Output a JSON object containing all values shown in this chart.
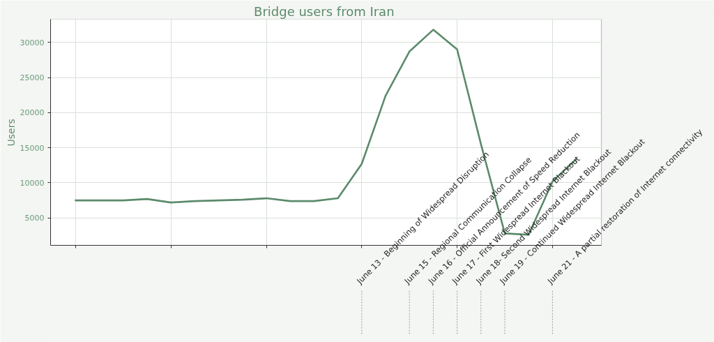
{
  "chart_data": {
    "type": "line",
    "title": "Bridge users from Iran",
    "ylabel": "Users",
    "categories": [
      null,
      null,
      null,
      null,
      null,
      null,
      null,
      null,
      null,
      null,
      null,
      null,
      null,
      null,
      null,
      null,
      null,
      null,
      null,
      null,
      null,
      null
    ],
    "series": [
      {
        "color": "#5b8a6b",
        "values": [
          7500,
          7500,
          7500,
          7700,
          7200,
          7400,
          7500,
          7600,
          7800,
          7400,
          7400,
          7800,
          12700,
          22400,
          28700,
          31800,
          29000,
          15500,
          2800,
          2600,
          10200,
          13400
        ]
      }
    ],
    "ylim": [
      1100,
      33300
    ],
    "yticks": [
      5000,
      10000,
      15000,
      20000,
      25000,
      30000
    ],
    "tick_labels": "y",
    "grid": true,
    "annotations": [
      "June 13 - Beginning of Widespread Disruption",
      "June 15 - Regional Communication Collapse",
      "June 16 - Official Announcement of Speed Reduction",
      "June 17 - First Widespread Internet Blackout",
      "June 18- Second Widespread Internet Blackout",
      "June 19 - Continued Widespread Internet Blackout",
      "June 21 - A partial restoration of Internet connectivity"
    ]
  }
}
